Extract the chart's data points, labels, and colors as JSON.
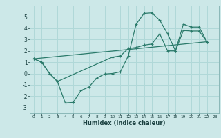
{
  "xlabel": "Humidex (Indice chaleur)",
  "xlim": [
    -0.5,
    23.5
  ],
  "ylim": [
    -3.5,
    6.0
  ],
  "background_color": "#cce8e8",
  "grid_color": "#b0d8d8",
  "line_color": "#2a7a6a",
  "yticks": [
    -3,
    -2,
    -1,
    0,
    1,
    2,
    3,
    4,
    5
  ],
  "xticks": [
    0,
    1,
    2,
    3,
    4,
    5,
    6,
    7,
    8,
    9,
    10,
    11,
    12,
    13,
    14,
    15,
    16,
    17,
    18,
    19,
    20,
    21,
    22,
    23
  ],
  "line1_x": [
    0,
    1,
    2,
    3,
    4,
    5,
    6,
    7,
    8,
    9,
    10,
    11,
    12,
    13,
    14,
    15,
    16,
    17,
    18,
    19,
    20,
    21,
    22
  ],
  "line1_y": [
    1.3,
    1.0,
    0.0,
    -0.7,
    -2.6,
    -2.55,
    -1.5,
    -1.2,
    -0.4,
    -0.05,
    0.0,
    0.15,
    1.55,
    4.35,
    5.3,
    5.35,
    4.7,
    3.5,
    2.0,
    4.35,
    4.1,
    4.1,
    2.8
  ],
  "line2_x": [
    0,
    1,
    2,
    3,
    10,
    11,
    12,
    13,
    14,
    15,
    16,
    17,
    18,
    19,
    20,
    21,
    22
  ],
  "line2_y": [
    1.3,
    1.0,
    0.0,
    -0.7,
    1.45,
    1.55,
    2.2,
    2.3,
    2.5,
    2.6,
    3.5,
    2.0,
    2.0,
    3.8,
    3.75,
    3.75,
    2.8
  ],
  "line3_x": [
    0,
    22
  ],
  "line3_y": [
    1.3,
    2.8
  ]
}
